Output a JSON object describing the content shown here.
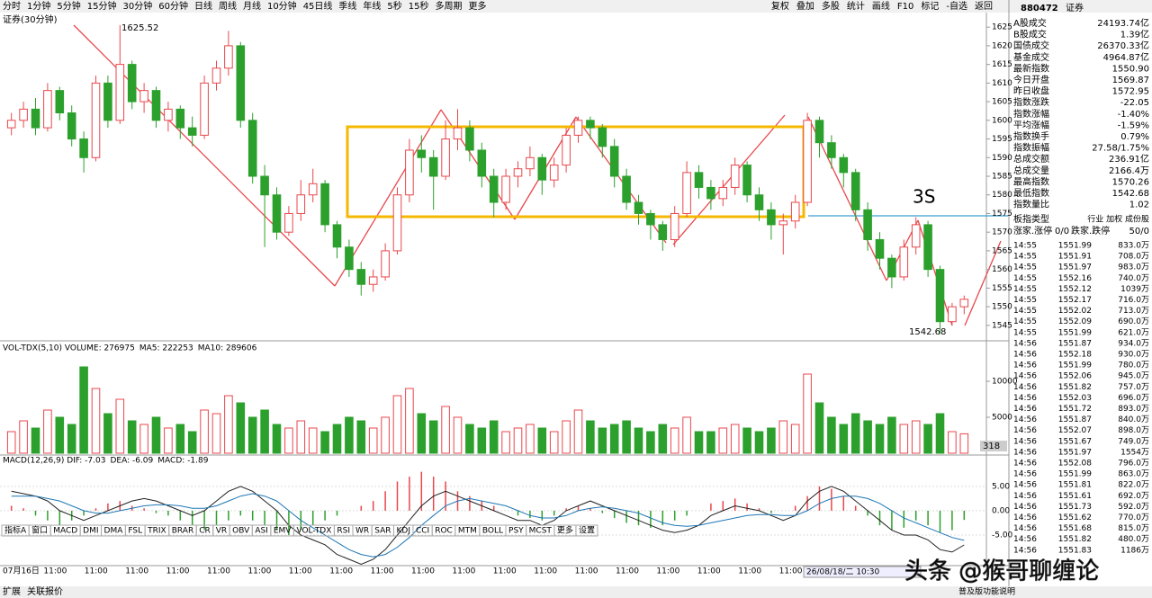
{
  "toolbar": {
    "items": [
      "分时",
      "1分钟",
      "5分钟",
      "15分钟",
      "30分钟",
      "60分钟",
      "日线",
      "周线",
      "月线",
      "10分钟",
      "45日线",
      "季线",
      "年线",
      "5秒",
      "15秒",
      "多周期",
      "更多"
    ],
    "active": 4,
    "right_items": [
      "复权",
      "叠加",
      "多股",
      "统计",
      "画线",
      "F10",
      "标记",
      "-自选",
      "返回"
    ]
  },
  "chart_data": [
    {
      "type": "candlestick",
      "title": "证券(30分钟)",
      "up_color": "#e8474c",
      "down_color": "#2ca02c",
      "candles": [
        [
          1598,
          1602,
          1596,
          1600
        ],
        [
          1600,
          1605,
          1598,
          1603
        ],
        [
          1603,
          1606,
          1596,
          1598
        ],
        [
          1598,
          1610,
          1597,
          1608
        ],
        [
          1608,
          1609,
          1600,
          1602
        ],
        [
          1602,
          1604,
          1593,
          1595
        ],
        [
          1595,
          1597,
          1586,
          1590
        ],
        [
          1590,
          1612,
          1589,
          1610
        ],
        [
          1610,
          1612,
          1598,
          1600
        ],
        [
          1600,
          1625.52,
          1599,
          1615
        ],
        [
          1615,
          1616,
          1603,
          1605
        ],
        [
          1605,
          1610,
          1602,
          1608
        ],
        [
          1608,
          1609,
          1598,
          1600
        ],
        [
          1600,
          1605,
          1597,
          1603
        ],
        [
          1603,
          1604,
          1595,
          1598
        ],
        [
          1598,
          1601,
          1593,
          1596
        ],
        [
          1596,
          1612,
          1595,
          1610
        ],
        [
          1610,
          1616,
          1608,
          1614
        ],
        [
          1614,
          1624,
          1612,
          1620
        ],
        [
          1620,
          1621,
          1598,
          1600
        ],
        [
          1600,
          1602,
          1583,
          1585
        ],
        [
          1585,
          1588,
          1566,
          1580
        ],
        [
          1580,
          1582,
          1568,
          1570
        ],
        [
          1570,
          1577,
          1569,
          1575
        ],
        [
          1575,
          1584,
          1573,
          1580
        ],
        [
          1580,
          1587,
          1578,
          1583
        ],
        [
          1583,
          1584,
          1570,
          1572
        ],
        [
          1572,
          1573,
          1563,
          1566
        ],
        [
          1566,
          1568,
          1558,
          1560
        ],
        [
          1560,
          1562,
          1553,
          1556
        ],
        [
          1556,
          1560,
          1554,
          1558
        ],
        [
          1558,
          1567,
          1557,
          1565
        ],
        [
          1565,
          1582,
          1564,
          1580
        ],
        [
          1580,
          1595,
          1578,
          1592
        ],
        [
          1592,
          1596,
          1586,
          1590
        ],
        [
          1590,
          1592,
          1576,
          1585
        ],
        [
          1585,
          1600,
          1584,
          1595
        ],
        [
          1595,
          1603,
          1592,
          1598
        ],
        [
          1598,
          1600,
          1589,
          1592
        ],
        [
          1592,
          1594,
          1582,
          1585
        ],
        [
          1585,
          1587,
          1574,
          1578
        ],
        [
          1578,
          1587,
          1576,
          1585
        ],
        [
          1585,
          1589,
          1582,
          1587
        ],
        [
          1587,
          1593,
          1585,
          1590
        ],
        [
          1590,
          1591,
          1580,
          1584
        ],
        [
          1584,
          1590,
          1582,
          1588
        ],
        [
          1588,
          1598,
          1586,
          1596
        ],
        [
          1596,
          1601,
          1594,
          1600
        ],
        [
          1600,
          1601,
          1595,
          1598
        ],
        [
          1598,
          1599,
          1590,
          1593
        ],
        [
          1593,
          1595,
          1582,
          1585
        ],
        [
          1585,
          1587,
          1576,
          1578
        ],
        [
          1578,
          1580,
          1572,
          1575
        ],
        [
          1575,
          1576,
          1568,
          1572
        ],
        [
          1572,
          1573,
          1565,
          1568
        ],
        [
          1568,
          1577,
          1566,
          1575
        ],
        [
          1575,
          1589,
          1574,
          1586
        ],
        [
          1586,
          1588,
          1579,
          1582
        ],
        [
          1582,
          1584,
          1576,
          1579
        ],
        [
          1579,
          1584,
          1577,
          1582
        ],
        [
          1582,
          1590,
          1580,
          1588
        ],
        [
          1588,
          1589,
          1578,
          1580
        ],
        [
          1580,
          1582,
          1573,
          1576
        ],
        [
          1576,
          1578,
          1568,
          1572
        ],
        [
          1572,
          1575,
          1564,
          1573
        ],
        [
          1573,
          1580,
          1571,
          1578
        ],
        [
          1578,
          1602,
          1577,
          1600
        ],
        [
          1600,
          1601,
          1590,
          1594
        ],
        [
          1594,
          1596,
          1587,
          1590
        ],
        [
          1590,
          1591,
          1582,
          1586
        ],
        [
          1586,
          1587,
          1573,
          1576
        ],
        [
          1576,
          1578,
          1565,
          1568
        ],
        [
          1568,
          1570,
          1560,
          1563
        ],
        [
          1563,
          1564,
          1555,
          1558
        ],
        [
          1558,
          1568,
          1557,
          1566
        ],
        [
          1566,
          1574,
          1564,
          1572
        ],
        [
          1572,
          1573,
          1558,
          1560
        ],
        [
          1560,
          1561,
          1542.68,
          1546
        ],
        [
          1546,
          1551,
          1545,
          1550
        ],
        [
          1550,
          1553,
          1548,
          1552
        ]
      ],
      "ylim": [
        1541.1,
        1628.9
      ],
      "yticks": [
        1545,
        1550,
        1555,
        1560,
        1565,
        1570,
        1575,
        1580,
        1585,
        1590,
        1595,
        1600,
        1605,
        1610,
        1615,
        1620,
        1625
      ],
      "high_label": "1625.52",
      "low_label": "1542.68",
      "note": "3S"
    },
    {
      "type": "volume",
      "title_parts": [
        {
          "text": "VOL-TDX(5,10) VOLUME: 276975",
          "color": "#000"
        },
        {
          "text": "MA5: 222253",
          "color": "#000"
        },
        {
          "text": "MA10: 289606",
          "color": "#1f77b4"
        }
      ],
      "values": [
        3000,
        4500,
        3500,
        6000,
        5000,
        4000,
        12000,
        9000,
        5500,
        7500,
        4500,
        4000,
        5000,
        3500,
        4000,
        3000,
        6000,
        5500,
        8000,
        7000,
        5000,
        6000,
        4000,
        3500,
        4500,
        3500,
        3000,
        4000,
        5000,
        4500,
        3500,
        5000,
        8000,
        9000,
        5500,
        4500,
        6500,
        5000,
        4000,
        3500,
        4500,
        3000,
        3500,
        4000,
        3500,
        3000,
        4500,
        6000,
        4500,
        3500,
        4000,
        4500,
        3500,
        3000,
        4000,
        3500,
        5000,
        3000,
        3000,
        3500,
        4000,
        3500,
        3000,
        3500,
        4500,
        4000,
        11000,
        7000,
        5000,
        4000,
        5500,
        4500,
        4000,
        5000,
        4000,
        4500,
        4000,
        5500,
        3000,
        2700
      ],
      "ylim": [
        0,
        14000
      ],
      "yticks": [
        5000,
        10000
      ],
      "last_label": "318"
    },
    {
      "type": "macd",
      "title_parts": [
        {
          "text": "MACD(12,26,9) DIF: -7.03",
          "color": "#000"
        },
        {
          "text": "DEA: -6.09",
          "color": "#1f77b4"
        },
        {
          "text": "MACD: -1.89",
          "color": "#9b2d8f"
        }
      ],
      "macd": [
        1,
        0.5,
        -1,
        -2,
        -3,
        -2,
        -1,
        0.5,
        1.5,
        2,
        1,
        0.5,
        -0.5,
        -1,
        -2,
        -3,
        -4,
        -3,
        -2,
        -1,
        -2,
        -3,
        -4,
        -5,
        -4,
        -3,
        -2,
        -1,
        0,
        1,
        2,
        4,
        6,
        7,
        8,
        7,
        6,
        4,
        3,
        2,
        1,
        0,
        -1,
        -1.5,
        -2,
        -1,
        0.5,
        1,
        0.5,
        -0.5,
        -1.5,
        -2.5,
        -3,
        -3.5,
        -3,
        -2,
        -1,
        0,
        1.5,
        2,
        2.5,
        1.5,
        0.5,
        -0.5,
        0,
        1,
        3,
        5,
        4.5,
        3,
        1,
        -1,
        -3,
        -4,
        -3.5,
        -2,
        -3,
        -4.5,
        -4,
        -1.89
      ],
      "dif": [
        4,
        3.5,
        3,
        2,
        0,
        -1,
        -2,
        -1,
        0,
        1,
        2,
        2.5,
        2,
        1,
        0,
        -1,
        0,
        2,
        4,
        5,
        4,
        2,
        0,
        -3,
        -5,
        -6,
        -7,
        -9,
        -10,
        -11,
        -10,
        -8,
        -5,
        -2,
        1,
        3,
        4,
        3,
        2,
        1,
        0,
        -1,
        -2,
        -2,
        -3,
        -2,
        0,
        1,
        2,
        1,
        0,
        -1,
        -2,
        -3,
        -4,
        -4.5,
        -4,
        -3,
        -1,
        0,
        1,
        0.5,
        0,
        -1,
        -2,
        -1,
        2,
        4,
        5,
        4,
        2,
        0,
        -2,
        -4,
        -5,
        -5,
        -6,
        -8,
        -8.5,
        -7.03
      ],
      "dea": [
        3,
        3,
        3,
        2.5,
        2,
        1,
        0,
        -0.5,
        -0.5,
        0,
        0.5,
        1,
        1.2,
        1.2,
        1,
        0.5,
        0.5,
        1,
        2,
        3,
        3.5,
        3,
        2,
        0,
        -2,
        -3.5,
        -5,
        -6.5,
        -8,
        -9,
        -9.5,
        -9,
        -7.5,
        -5.5,
        -3,
        -1,
        1,
        2,
        2.5,
        2,
        1.5,
        1,
        0,
        -1,
        -1.5,
        -1.5,
        -1,
        0,
        0.5,
        0.8,
        0.5,
        0,
        -0.5,
        -1.5,
        -2.5,
        -3,
        -3.2,
        -3,
        -2.5,
        -2,
        -1.5,
        -1,
        -0.8,
        -0.8,
        -1,
        -1,
        0,
        1.5,
        2.5,
        3,
        3,
        2.5,
        1.5,
        0,
        -1.5,
        -2.5,
        -3.5,
        -4.5,
        -5.5,
        -6.09
      ],
      "dif_color": "#222",
      "dea_color": "#1f77b4",
      "ylim": [
        -11.1,
        10.7
      ],
      "yticks": [
        {
          "value": -5,
          "label": "-5.00"
        },
        {
          "value": 0,
          "label": "0.00"
        },
        {
          "value": 5,
          "label": "5.00"
        }
      ]
    }
  ],
  "time_axis": {
    "labels": [
      "07月16日",
      "11:00",
      "11:00",
      "11:00",
      "11:00",
      "11:00",
      "11:00",
      "11:00",
      "11:00",
      "11:00",
      "11:00",
      "11:00",
      "11:00",
      "11:00",
      "11:00",
      "11:00",
      "11:00",
      "11:00",
      "11:00",
      "11:00"
    ],
    "cursor": "26/08/18/二 10:30"
  },
  "tabs": [
    "指标A",
    "窗口",
    "MACD",
    "DMI",
    "DMA",
    "FSL",
    "TRIX",
    "BRAR",
    "CR",
    "VR",
    "OBV",
    "ASI",
    "EMV",
    "VOL-TDX",
    "RSI",
    "WR",
    "SAR",
    "KDJ",
    "CCI",
    "ROC",
    "MTM",
    "BOLL",
    "PSY",
    "MCST",
    "更多",
    "设置"
  ],
  "active_tab": 2,
  "panel": {
    "code": "880472",
    "name": "证券",
    "stats": [
      {
        "label": "A股成交",
        "value": "24193.74亿",
        "color": "#000"
      },
      {
        "label": "B股成交",
        "value": "1.39亿",
        "color": "#000"
      },
      {
        "label": "国债成交",
        "value": "26370.33亿",
        "color": "#000"
      },
      {
        "label": "基金成交",
        "value": "4964.87亿",
        "color": "#000"
      },
      {
        "label": "最新指数",
        "value": "1550.90",
        "color": "#1a9a1a"
      },
      {
        "label": "今日开盘",
        "value": "1569.87",
        "color": "#1a9a1a"
      },
      {
        "label": "昨日收盘",
        "value": "1572.95",
        "color": "#000"
      },
      {
        "label": "指数涨跌",
        "value": "-22.05",
        "color": "#1a9a1a"
      },
      {
        "label": "指数涨幅",
        "value": "-1.40%",
        "color": "#1a9a1a"
      },
      {
        "label": "平均涨幅",
        "value": "-1.59%",
        "color": "#1a9a1a"
      },
      {
        "label": "指数换手",
        "value": "0.79%",
        "color": "#000"
      },
      {
        "label": "指数振幅",
        "value": "27.58/1.75%",
        "color": "#000"
      },
      {
        "label": "总成交额",
        "value": "236.91亿",
        "color": "#000"
      },
      {
        "label": "总成交量",
        "value": "2166.4万",
        "color": "#000"
      },
      {
        "label": "最高指数",
        "value": "1570.26",
        "color": "#1a9a1a"
      },
      {
        "label": "最低指数",
        "value": "1542.68",
        "color": "#1a9a1a"
      },
      {
        "label": "指数量比",
        "value": "1.02",
        "color": "#e8474c"
      }
    ],
    "type_label": "板指类型",
    "type_value": "行业 加权 成份股",
    "updown": [
      "涨家.涨停",
      "0/0",
      "跌家.跌停",
      "50/0"
    ],
    "trades": [
      [
        "14:55",
        "1551.99",
        "833.0万"
      ],
      [
        "14:55",
        "1551.91",
        "708.0万"
      ],
      [
        "14:55",
        "1551.97",
        "983.0万"
      ],
      [
        "14:55",
        "1552.16",
        "740.0万"
      ],
      [
        "14:55",
        "1552.12",
        "1039万"
      ],
      [
        "14:55",
        "1552.17",
        "716.0万"
      ],
      [
        "14:55",
        "1552.02",
        "713.0万"
      ],
      [
        "14:55",
        "1552.09",
        "690.0万"
      ],
      [
        "14:55",
        "1551.99",
        "621.0万"
      ],
      [
        "14:56",
        "1551.87",
        "934.0万"
      ],
      [
        "14:56",
        "1552.18",
        "930.0万"
      ],
      [
        "14:56",
        "1551.99",
        "780.0万"
      ],
      [
        "14:56",
        "1552.06",
        "945.0万"
      ],
      [
        "14:56",
        "1551.82",
        "757.0万"
      ],
      [
        "14:56",
        "1552.03",
        "696.0万"
      ],
      [
        "14:56",
        "1551.72",
        "893.0万"
      ],
      [
        "14:56",
        "1551.87",
        "840.0万"
      ],
      [
        "14:56",
        "1552.07",
        "898.0万"
      ],
      [
        "14:56",
        "1551.67",
        "749.0万"
      ],
      [
        "14:56",
        "1551.97",
        "1554万"
      ],
      [
        "14:56",
        "1552.08",
        "796.0万"
      ],
      [
        "14:56",
        "1551.99",
        "863.0万"
      ],
      [
        "14:56",
        "1551.81",
        "822.0万"
      ],
      [
        "14:56",
        "1551.61",
        "692.0万"
      ],
      [
        "14:56",
        "1551.73",
        "592.0万"
      ],
      [
        "14:56",
        "1551.62",
        "770.0万"
      ],
      [
        "14:56",
        "1551.68",
        "815.0万"
      ],
      [
        "14:56",
        "1551.82",
        "480.0万"
      ],
      [
        "14:56",
        "1551.83",
        "1186万"
      ]
    ],
    "price_color": "#1a9a1a"
  },
  "status": {
    "left": [
      "扩展",
      "关联报价"
    ],
    "right": "普及版功能说明"
  },
  "watermark": "头条 @猴哥聊缠论"
}
